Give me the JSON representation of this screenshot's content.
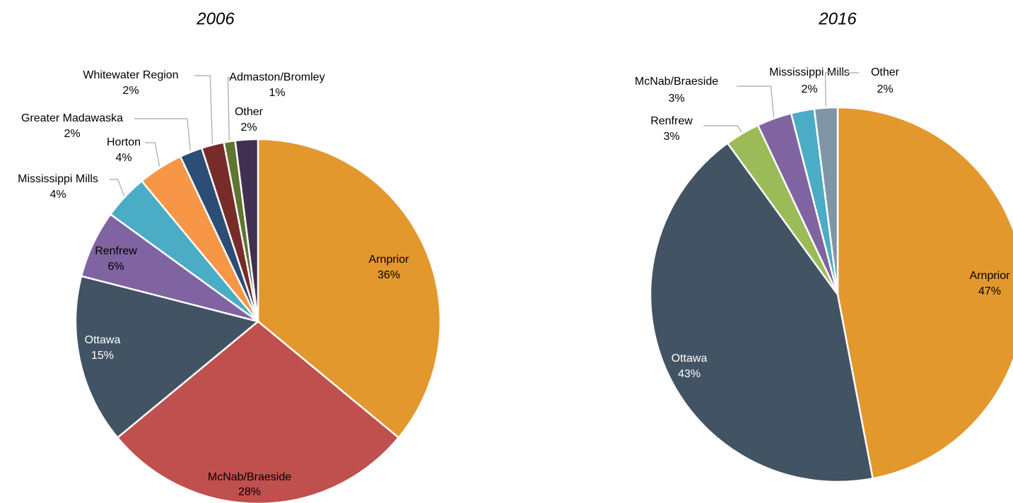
{
  "chart_data": [
    {
      "type": "pie",
      "title": "2006",
      "categories": [
        "Arnprior",
        "McNab/Braeside",
        "Ottawa",
        "Renfrew",
        "Mississippi Mills",
        "Horton",
        "Greater Madawaska",
        "Whitewater Region",
        "Admaston/Bromley",
        "Other"
      ],
      "values": [
        36,
        28,
        15,
        6,
        4,
        4,
        2,
        2,
        1,
        2
      ],
      "value_labels": [
        "36%",
        "28%",
        "15%",
        "6%",
        "4%",
        "4%",
        "2%",
        "2%",
        "1%",
        "2%"
      ],
      "colors": [
        "#e3982e",
        "#c0504d",
        "#425363",
        "#8064a2",
        "#4bacc6",
        "#f79646",
        "#2c4d75",
        "#772c2a",
        "#5f7530",
        "#403152"
      ]
    },
    {
      "type": "pie",
      "title": "2016",
      "categories": [
        "Arnprior",
        "Ottawa",
        "Renfrew",
        "McNab/Braeside",
        "Mississippi Mills",
        "Other"
      ],
      "values": [
        47,
        43,
        3,
        3,
        2,
        2
      ],
      "value_labels": [
        "47%",
        "43%",
        "3%",
        "3%",
        "2%",
        "2%"
      ],
      "colors": [
        "#e3982e",
        "#425363",
        "#9bbb59",
        "#8064a2",
        "#4bacc6",
        "#7f96a7"
      ]
    }
  ]
}
